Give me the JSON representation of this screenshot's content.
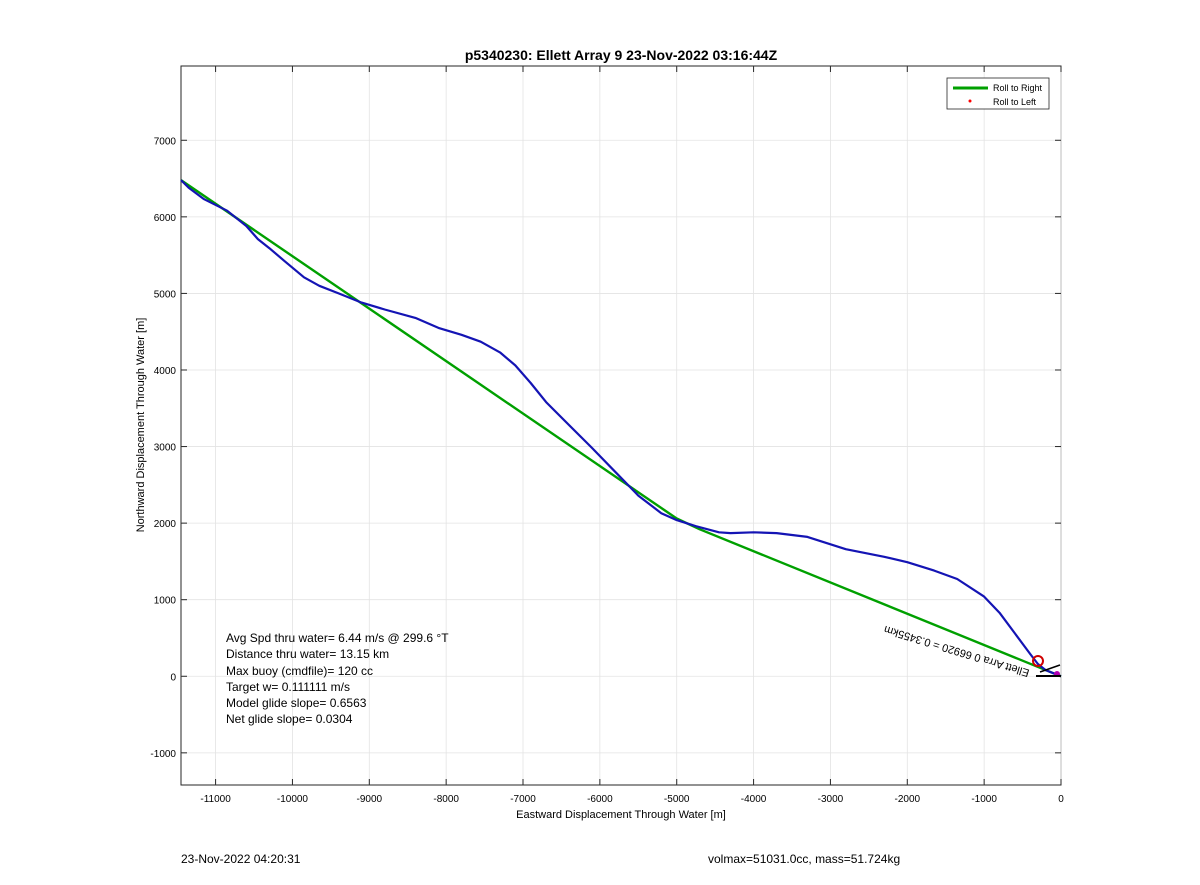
{
  "chart_data": {
    "type": "line",
    "title": "p5340230: Ellett Array 9 23-Nov-2022 03:16:44Z",
    "xlabel": "Eastward Displacement Through Water [m]",
    "ylabel": "Northward Displacement Through Water [m]",
    "xlim": [
      -11450,
      0
    ],
    "ylim": [
      -1420,
      7970
    ],
    "x_ticks": [
      -11000,
      -10000,
      -9000,
      -8000,
      -7000,
      -6000,
      -5000,
      -4000,
      -3000,
      -2000,
      -1000,
      0
    ],
    "y_ticks": [
      -1000,
      0,
      1000,
      2000,
      3000,
      4000,
      5000,
      6000,
      7000
    ],
    "grid": true,
    "legend_position": "top-right",
    "legend": [
      {
        "label": "Roll to Right",
        "color": "#00a000",
        "marker": "line"
      },
      {
        "label": "Roll to Left",
        "color": "#ff0000",
        "marker": "dot"
      }
    ],
    "series": [
      {
        "color": "#1414b4",
        "x": [
          -11450,
          -11350,
          -11150,
          -10850,
          -10600,
          -10450,
          -10300,
          -10100,
          -9850,
          -9650,
          -9400,
          -9100,
          -8800,
          -8400,
          -8100,
          -7800,
          -7550,
          -7300,
          -7100,
          -6900,
          -6700,
          -6400,
          -6100,
          -5800,
          -5500,
          -5200,
          -5000,
          -4750,
          -4450,
          -4300,
          -4000,
          -3700,
          -3300,
          -2800,
          -2300,
          -2000,
          -1650,
          -1350,
          -1000,
          -800,
          -600,
          -400,
          -300,
          -200,
          -100,
          -50,
          0
        ],
        "y": [
          6480,
          6380,
          6230,
          6080,
          5880,
          5710,
          5590,
          5420,
          5210,
          5100,
          5000,
          4880,
          4790,
          4680,
          4550,
          4460,
          4370,
          4230,
          4060,
          3830,
          3580,
          3280,
          2980,
          2670,
          2360,
          2130,
          2040,
          1960,
          1880,
          1870,
          1880,
          1870,
          1820,
          1660,
          1560,
          1490,
          1380,
          1270,
          1040,
          830,
          560,
          290,
          160,
          80,
          40,
          20,
          0
        ]
      },
      {
        "color": "#00a000",
        "x": [
          -11450,
          -5000,
          -4700,
          0
        ],
        "y": [
          6480,
          2060,
          1920,
          0
        ]
      }
    ]
  },
  "annotations": [
    "Avg Spd thru water=  6.44 m/s @ 299.6 °T",
    "Distance thru water= 13.15 km",
    "Max buoy (cmdfile)= 120 cc",
    "Target w= 0.111111 m/s",
    "Model glide slope= 0.6563",
    "Net glide slope= 0.0304"
  ],
  "rotated_label": "Ellett Arra 0 66920 = 0.3455km",
  "footer": {
    "left": "23-Nov-2022 04:20:31",
    "right": "volmax=51031.0cc, mass=51.724kg"
  }
}
